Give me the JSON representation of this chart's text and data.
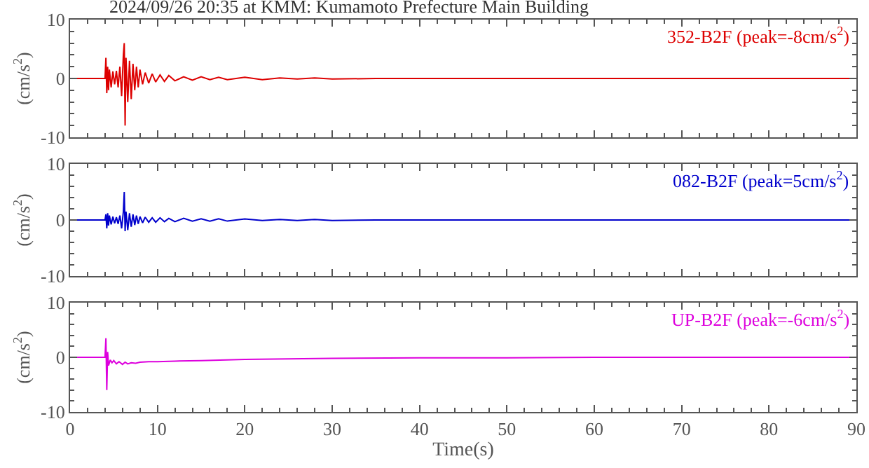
{
  "chart_data": [
    {
      "type": "line",
      "title": "2024/09/26 20:35 at KMM: Kumamoto Prefecture Main Building",
      "ylabel": "(cm/s$^{2}$)",
      "xlim": [
        0,
        90
      ],
      "xticks": [
        0,
        10,
        20,
        30,
        40,
        50,
        60,
        70,
        80,
        90
      ],
      "ylim": [
        -10,
        10
      ],
      "yticks": [
        -10,
        0,
        10
      ],
      "tick_labels": "y",
      "x": [
        0,
        4.0,
        4.1,
        4.2,
        4.3,
        4.4,
        4.5,
        4.7,
        4.9,
        5.1,
        5.3,
        5.5,
        5.7,
        5.9,
        6.1,
        6.2,
        6.3,
        6.4,
        6.6,
        6.8,
        7.0,
        7.2,
        7.4,
        7.6,
        7.8,
        8.0,
        8.3,
        8.6,
        9,
        9.4,
        9.8,
        10.3,
        10.8,
        11.3,
        12,
        13,
        14,
        15,
        16,
        17,
        18,
        20,
        22,
        24,
        26,
        28,
        30,
        35,
        40,
        50,
        60,
        70,
        80,
        90
      ],
      "series": [
        {
          "name": "352-B2F (peak=-8cm/s$^{2}$)",
          "color": "#dd0000",
          "values": [
            0,
            0,
            3.5,
            -2.5,
            2,
            -2,
            1.5,
            -1.5,
            1.2,
            -1,
            1.3,
            -1.5,
            2,
            -3,
            4,
            6,
            -8,
            3.5,
            -4,
            3,
            -3.5,
            2.5,
            -2,
            2,
            -1.5,
            1.5,
            -1,
            1,
            -0.8,
            0.8,
            -0.6,
            0.6,
            -0.5,
            0.5,
            -0.4,
            0.3,
            -0.3,
            0.3,
            -0.2,
            0.2,
            -0.2,
            0.2,
            -0.2,
            0.1,
            -0.1,
            0.1,
            -0.1,
            0,
            0,
            0,
            0,
            0,
            0,
            0
          ]
        }
      ]
    },
    {
      "type": "line",
      "ylabel": "(cm/s$^{2}$)",
      "xlim": [
        0,
        90
      ],
      "xticks": [
        0,
        10,
        20,
        30,
        40,
        50,
        60,
        70,
        80,
        90
      ],
      "ylim": [
        -10,
        10
      ],
      "yticks": [
        -10,
        0,
        10
      ],
      "tick_labels": "y",
      "x": [
        0,
        4.0,
        4.1,
        4.2,
        4.3,
        4.4,
        4.5,
        4.7,
        4.9,
        5.1,
        5.3,
        5.5,
        5.7,
        5.9,
        6.1,
        6.2,
        6.3,
        6.4,
        6.6,
        6.8,
        7.0,
        7.2,
        7.4,
        7.6,
        7.8,
        8.0,
        8.3,
        8.6,
        9,
        9.4,
        9.8,
        10.3,
        10.8,
        11.3,
        12,
        13,
        14,
        15,
        16,
        17,
        18,
        20,
        22,
        24,
        26,
        28,
        30,
        35,
        40,
        50,
        60,
        70,
        80,
        90
      ],
      "series": [
        {
          "name": "082-B2F (peak=5cm/s$^{2}$)",
          "color": "#0000cc",
          "values": [
            0,
            0,
            1,
            -1.5,
            1.2,
            -1,
            0.8,
            -0.8,
            0.6,
            -0.6,
            0.5,
            -0.7,
            0.8,
            -1.5,
            1.5,
            5,
            -2,
            1.5,
            -1.8,
            1.2,
            -1.2,
            1,
            -0.9,
            0.8,
            -0.7,
            0.6,
            -0.5,
            0.5,
            -0.4,
            0.4,
            -0.4,
            0.4,
            -0.3,
            0.3,
            -0.3,
            0.3,
            -0.2,
            0.2,
            -0.2,
            0.2,
            -0.2,
            0.2,
            -0.1,
            0.1,
            -0.1,
            0.1,
            -0.1,
            0,
            0,
            0,
            0,
            0,
            0,
            0
          ]
        }
      ]
    },
    {
      "type": "line",
      "xlabel": "Time(s)",
      "ylabel": "(cm/s$^{2}$)",
      "xlim": [
        0,
        90
      ],
      "xticks": [
        0,
        10,
        20,
        30,
        40,
        50,
        60,
        70,
        80,
        90
      ],
      "ylim": [
        -10,
        10
      ],
      "yticks": [
        -10,
        0,
        10
      ],
      "x": [
        0,
        4.0,
        4.1,
        4.2,
        4.3,
        4.4,
        4.6,
        4.8,
        5,
        5.3,
        5.6,
        6,
        6.3,
        6.6,
        7,
        7.5,
        8,
        9,
        10,
        12,
        15,
        20,
        25,
        30,
        40,
        50,
        60,
        70,
        80,
        90
      ],
      "series": [
        {
          "name": "UP-B2F (peak=-6cm/s$^{2}$)",
          "color": "#dd00dd",
          "values": [
            0,
            0,
            3.5,
            -6,
            1,
            -1.5,
            -0.5,
            -1,
            -0.6,
            -1.2,
            -0.8,
            -1.3,
            -0.9,
            -1.2,
            -1,
            -1.1,
            -0.9,
            -0.8,
            -0.8,
            -0.7,
            -0.6,
            -0.4,
            -0.3,
            -0.2,
            -0.1,
            -0.1,
            0,
            0,
            0,
            0
          ]
        }
      ]
    }
  ]
}
